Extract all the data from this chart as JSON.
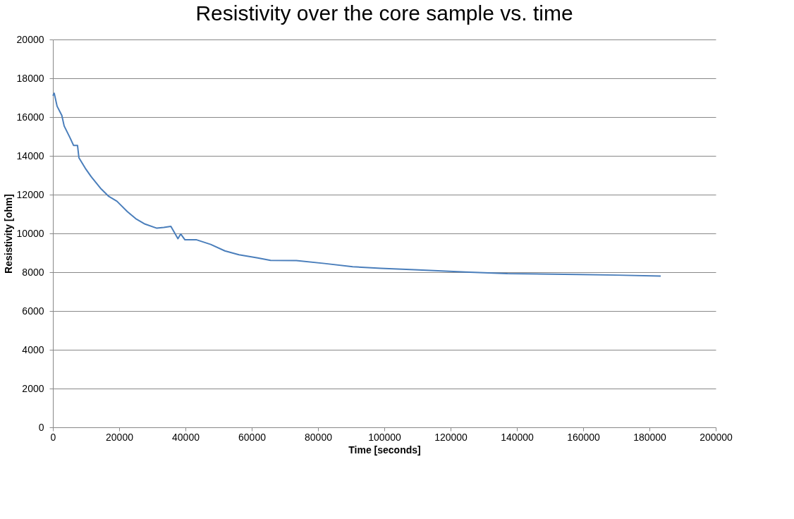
{
  "chart_data": {
    "type": "line",
    "title": "Resistivity over the core sample vs. time",
    "xlabel": "Time [seconds]",
    "ylabel": "Resistivity [ohm]",
    "x": [
      0,
      400,
      1270,
      2700,
      3400,
      5170,
      6230,
      7430,
      7860,
      9770,
      11530,
      14370,
      16840,
      19320,
      22500,
      24990,
      27810,
      31360,
      33480,
      35600,
      37730,
      38580,
      39850,
      43380,
      47630,
      51870,
      56120,
      61780,
      65680,
      73460,
      81950,
      90450,
      98940,
      109130,
      124420,
      137150,
      158390,
      170000,
      183400
    ],
    "series": [
      {
        "color": "#4a7ebb",
        "values": [
          17100,
          17230,
          16560,
          16080,
          15540,
          14930,
          14540,
          14540,
          13900,
          13360,
          12930,
          12330,
          11910,
          11660,
          11120,
          10760,
          10480,
          10270,
          10310,
          10360,
          9730,
          9970,
          9670,
          9670,
          9430,
          9100,
          8900,
          8740,
          8610,
          8600,
          8450,
          8280,
          8200,
          8130,
          8010,
          7930,
          7880,
          7850,
          7800
        ]
      }
    ],
    "xlim": [
      0,
      200000
    ],
    "xticks": [
      0,
      20000,
      40000,
      60000,
      80000,
      100000,
      120000,
      140000,
      160000,
      180000,
      200000
    ],
    "ylim": [
      0,
      20000
    ],
    "yticks": [
      0,
      2000,
      4000,
      6000,
      8000,
      10000,
      12000,
      14000,
      16000,
      18000,
      20000
    ],
    "grid": "y",
    "marker": "none",
    "line_style": "solid"
  }
}
